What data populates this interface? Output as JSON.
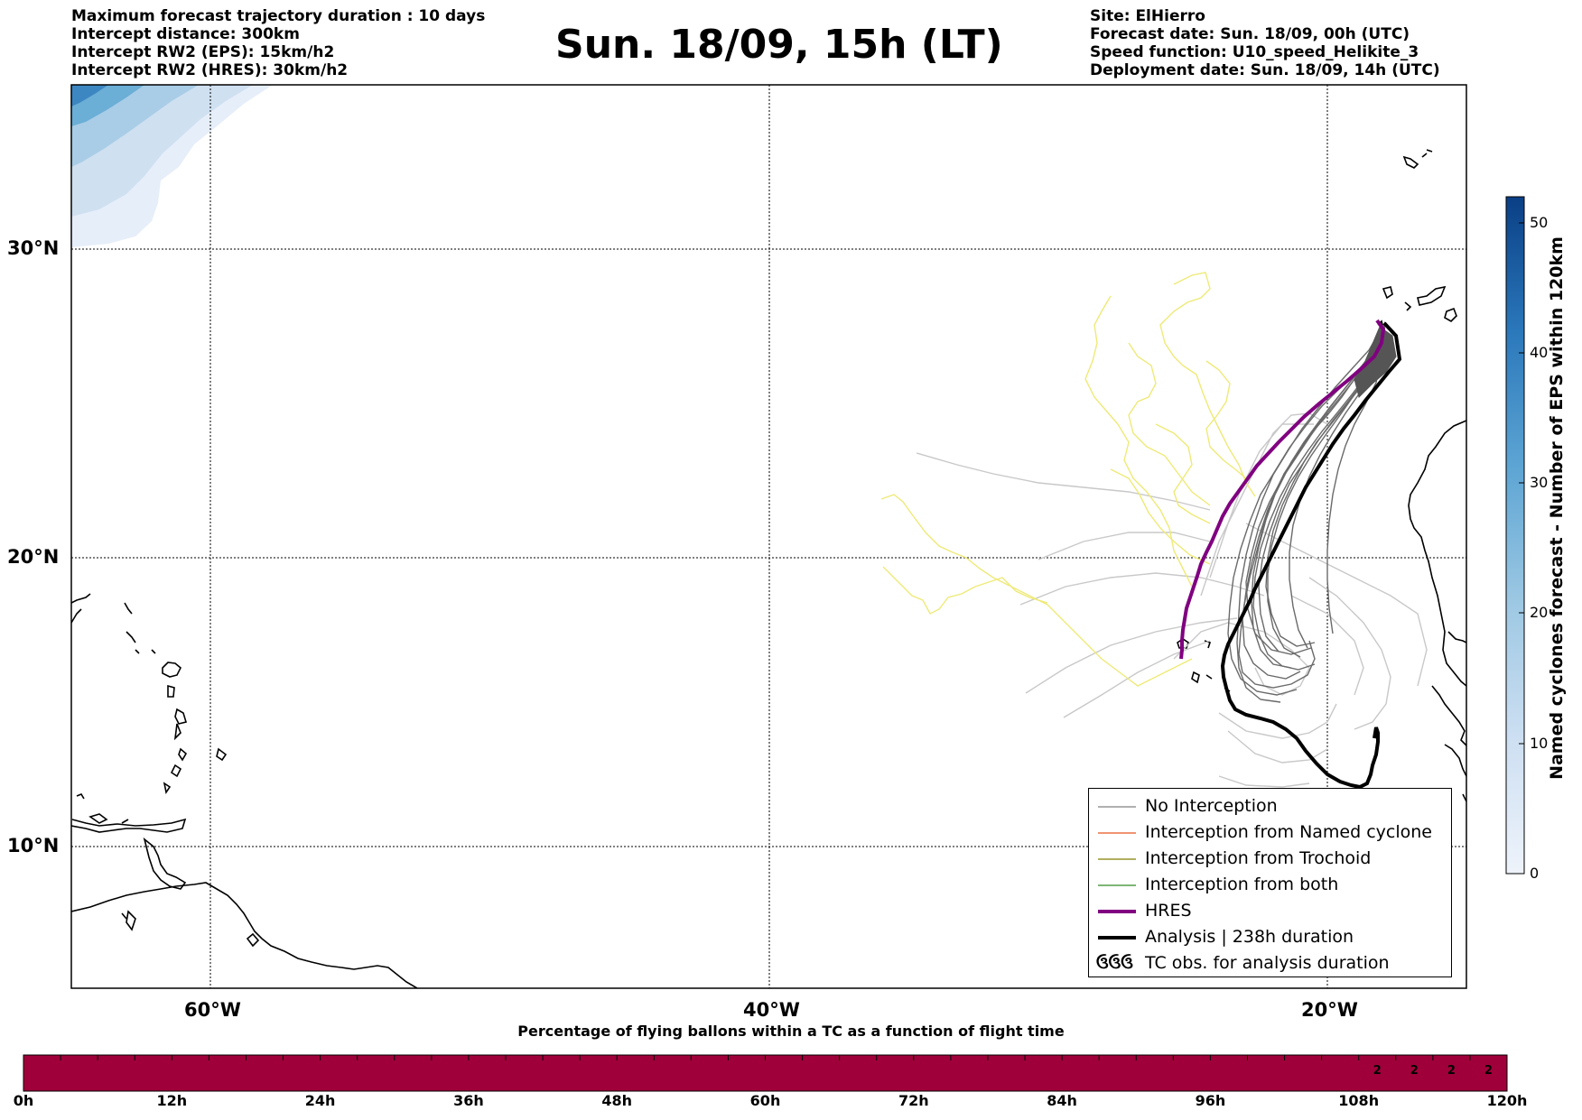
{
  "header": {
    "left_lines": [
      "Maximum forecast trajectory duration : 10 days",
      "Intercept distance: 300km",
      "Intercept RW2 (EPS):  15km/h2",
      "Intercept RW2 (HRES): 30km/h2"
    ],
    "title": "Sun. 18/09, 15h (LT)",
    "right_lines": [
      "Site: ElHierro",
      "Forecast date: Sun. 18/09, 00h (UTC)",
      "Speed function: U10_speed_Helikite_3",
      "Deployment date: Sun. 18/09, 14h (UTC)"
    ]
  },
  "map": {
    "lat_labels": [
      "30°N",
      "20°N",
      "10°N"
    ],
    "lon_labels": [
      "60°W",
      "40°W",
      "20°W"
    ],
    "lat_values": [
      30,
      20,
      10
    ],
    "lon_values": [
      -60,
      -40,
      -20
    ],
    "extent": {
      "lon_min": -65,
      "lon_max": -15,
      "lat_min": 5.4,
      "lat_max": 35.3
    }
  },
  "legend": {
    "items": [
      {
        "label": "No Interception",
        "color": "#808080",
        "style": "thin"
      },
      {
        "label": "Interception from Named cyclone",
        "color": "#e8531f",
        "style": "thin"
      },
      {
        "label": "Interception from Trochoid",
        "color": "#808000",
        "style": "thin"
      },
      {
        "label": "Interception from both",
        "color": "#2e8b22",
        "style": "thin"
      },
      {
        "label": "HRES",
        "color": "#800080",
        "style": "thick"
      },
      {
        "label": "Analysis | 238h duration",
        "color": "#000000",
        "style": "thick"
      },
      {
        "label": "TC obs. for analysis duration",
        "color": "#000000",
        "style": "symbol",
        "symbol": "ઉઉઉ"
      }
    ]
  },
  "colorbar": {
    "title": "Named cyclones forecast - Number of EPS within 120km",
    "ticks": [
      "0",
      "10",
      "20",
      "30",
      "40",
      "50"
    ],
    "min": 0,
    "max": 52,
    "colors": [
      "#eef3fb",
      "#cddff2",
      "#9dc8e3",
      "#5da5d4",
      "#2b78bb",
      "#0a3f85"
    ]
  },
  "timeline": {
    "title": "Percentage of flying ballons within a TC as a function of flight time",
    "labels": [
      "0h",
      "12h",
      "24h",
      "36h",
      "48h",
      "60h",
      "72h",
      "84h",
      "96h",
      "108h",
      "120h"
    ],
    "bar_color": "#a0003a",
    "cell_values": [
      "2",
      "2",
      "2",
      "2"
    ]
  }
}
